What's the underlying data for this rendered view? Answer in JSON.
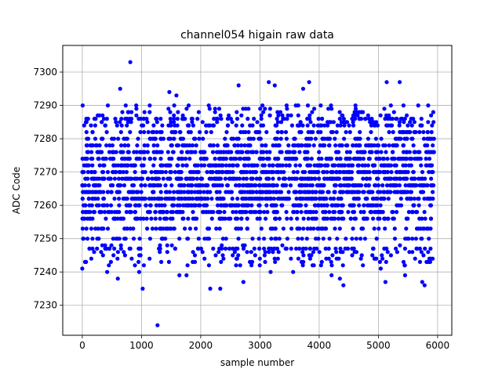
{
  "chart_data": {
    "type": "scatter",
    "title": "channel054 higain raw data",
    "xlabel": "sample number",
    "ylabel": "ADC Code",
    "xlim": [
      -330,
      6240
    ],
    "ylim": [
      7221,
      7308
    ],
    "xticks": [
      0,
      1000,
      2000,
      3000,
      4000,
      5000,
      6000
    ],
    "yticks": [
      7230,
      7240,
      7250,
      7260,
      7270,
      7280,
      7290,
      7300
    ],
    "grid": true,
    "marker_color": "#0000ff",
    "n_samples": 5940,
    "levels": [
      7247,
      7250,
      7253,
      7256,
      7258,
      7260,
      7262,
      7264,
      7266,
      7268,
      7270,
      7272,
      7274,
      7276,
      7278,
      7280,
      7282,
      7284,
      7286
    ],
    "level_weights": [
      2,
      4,
      5,
      7,
      9,
      10,
      11,
      11,
      12,
      11,
      11,
      10,
      9,
      8,
      7,
      6,
      5,
      4,
      3
    ],
    "outliers": [
      {
        "x": 810,
        "y": 7303
      },
      {
        "x": 640,
        "y": 7295
      },
      {
        "x": 2640,
        "y": 7296
      },
      {
        "x": 3150,
        "y": 7297
      },
      {
        "x": 3250,
        "y": 7296
      },
      {
        "x": 3730,
        "y": 7295
      },
      {
        "x": 3830,
        "y": 7297
      },
      {
        "x": 5140,
        "y": 7297
      },
      {
        "x": 5360,
        "y": 7297
      },
      {
        "x": 1470,
        "y": 7294
      },
      {
        "x": 1590,
        "y": 7293
      },
      {
        "x": 1270,
        "y": 7224
      },
      {
        "x": 2160,
        "y": 7235
      },
      {
        "x": 2330,
        "y": 7235
      },
      {
        "x": 1020,
        "y": 7235
      },
      {
        "x": 4410,
        "y": 7236
      },
      {
        "x": 5740,
        "y": 7237
      },
      {
        "x": 5780,
        "y": 7236
      },
      {
        "x": 600,
        "y": 7238
      },
      {
        "x": 4350,
        "y": 7238
      },
      {
        "x": 2720,
        "y": 7237
      },
      {
        "x": 5120,
        "y": 7237
      },
      {
        "x": 0,
        "y": 7241
      },
      {
        "x": 420,
        "y": 7240
      },
      {
        "x": 1640,
        "y": 7239
      },
      {
        "x": 1760,
        "y": 7239
      },
      {
        "x": 3180,
        "y": 7240
      },
      {
        "x": 3560,
        "y": 7240
      },
      {
        "x": 960,
        "y": 7240
      },
      {
        "x": 4210,
        "y": 7239
      },
      {
        "x": 5040,
        "y": 7241
      },
      {
        "x": 5450,
        "y": 7239
      }
    ]
  }
}
